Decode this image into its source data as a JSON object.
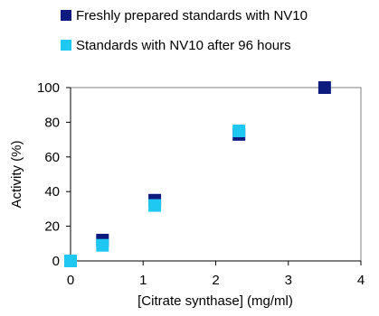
{
  "chart_data": {
    "type": "scatter",
    "xlabel": "[Citrate synthase] (mg/ml)",
    "ylabel": "Activity (%)",
    "xlim": [
      0,
      4
    ],
    "ylim": [
      0,
      100
    ],
    "xticks": [
      0,
      1,
      2,
      3,
      4
    ],
    "yticks": [
      0,
      20,
      40,
      60,
      80,
      100
    ],
    "grid": false,
    "legend_position": "top",
    "series": [
      {
        "name": "Freshly prepared standards with NV10",
        "color": "#0d1b7e",
        "marker": "square",
        "points": [
          [
            0,
            0
          ],
          [
            0.44,
            12
          ],
          [
            1.16,
            35
          ],
          [
            2.32,
            73
          ],
          [
            3.5,
            100
          ]
        ]
      },
      {
        "name": "Standards with NV10 after 96 hours",
        "color": "#1fc8f0",
        "marker": "square",
        "points": [
          [
            0,
            0
          ],
          [
            0.44,
            9
          ],
          [
            1.16,
            32
          ],
          [
            2.32,
            75
          ]
        ]
      }
    ]
  }
}
